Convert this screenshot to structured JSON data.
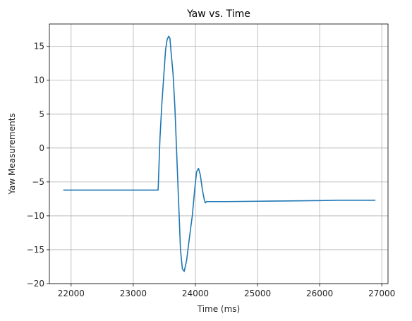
{
  "chart_data": {
    "type": "line",
    "title": "Yaw vs. Time",
    "xlabel": "Time (ms)",
    "ylabel": "Yaw Measurements",
    "xlim": [
      21650,
      27100
    ],
    "ylim": [
      -20,
      18.3
    ],
    "grid": true,
    "xticks": [
      22000,
      23000,
      24000,
      25000,
      26000,
      27000
    ],
    "xtick_labels": [
      "22000",
      "23000",
      "24000",
      "25000",
      "26000",
      "27000"
    ],
    "yticks": [
      -20,
      -15,
      -10,
      -5,
      0,
      5,
      10,
      15
    ],
    "ytick_labels": [
      "−20",
      "−15",
      "−10",
      "−5",
      "0",
      "5",
      "10",
      "15"
    ],
    "series": [
      {
        "color": "#1f77b4",
        "x": [
          21880,
          22300,
          22700,
          23000,
          23200,
          23400,
          23430,
          23460,
          23490,
          23520,
          23545,
          23570,
          23590,
          23610,
          23640,
          23670,
          23700,
          23730,
          23760,
          23790,
          23820,
          23860,
          23900,
          23950,
          23990,
          24020,
          24050,
          24080,
          24110,
          24140,
          24160,
          24180,
          24500,
          25000,
          25500,
          26000,
          26300,
          26890
        ],
        "y": [
          -6.2,
          -6.2,
          -6.2,
          -6.2,
          -6.2,
          -6.2,
          1.5,
          6.5,
          10.5,
          14.5,
          16.0,
          16.5,
          16.2,
          14.0,
          11.0,
          6.0,
          -1.0,
          -8.0,
          -15.0,
          -17.8,
          -18.2,
          -16.5,
          -13.5,
          -10.0,
          -6.0,
          -3.5,
          -3.0,
          -4.0,
          -6.0,
          -7.5,
          -8.1,
          -7.9,
          -7.9,
          -7.85,
          -7.8,
          -7.75,
          -7.7,
          -7.7
        ]
      }
    ]
  }
}
